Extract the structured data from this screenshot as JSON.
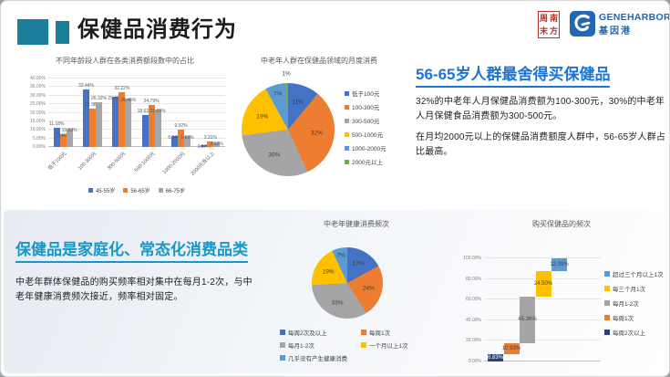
{
  "header": {
    "title": "保健品消费行为",
    "seal": {
      "chars": [
        "周",
        "南",
        "末",
        "方"
      ]
    },
    "geneharbor": {
      "en": "GENEHARBOR",
      "cn": "基因港"
    }
  },
  "colors": {
    "accent_teal": "#1B7E9B",
    "heading_blue": "#1B74D6",
    "heading_cyan": "#1598C8",
    "seal_red": "#B3342A",
    "logo_blue": "#2368B0",
    "series_blue": "#4472C4",
    "series_orange": "#ED7D31",
    "series_gray": "#A5A5A5",
    "series_yellow": "#FFC000",
    "series_steel": "#5B9BD5",
    "series_green": "#70AD47",
    "series_navy": "#264478"
  },
  "insight_right": {
    "heading": "56-65岁人群最舍得买保健品",
    "para1": "32%的中老年人月保健品消费额为100-300元，30%的中老年人月保健食品消费额为300-500元。",
    "para2": "在月均2000元以上的保健品消费额度人群中，56-65岁人群占比最高。"
  },
  "insight_left": {
    "heading": "保健品是家庭化、常态化消费品类",
    "para": "中老年群体保健品的购买频率相对集中在每月1-2次，与中老年健康消费频次接近，频率相对固定。"
  },
  "chart_data": [
    {
      "id": "age_spend_bar",
      "type": "bar",
      "title": "不同年龄段人群在各类消费额段数中的占比",
      "categories": [
        "低于100元",
        "100-300元",
        "300-500元",
        "500-1000元",
        "1000-2000元",
        "2000元及以上"
      ],
      "series": [
        {
          "name": "45-55岁",
          "color": "#4472C4",
          "values": [
            11.18,
            33.44,
            29.46,
            18.62,
            6.34,
            0.97
          ]
        },
        {
          "name": "56-65岁",
          "color": "#ED7D31",
          "values": [
            7.44,
            22.38,
            32.22,
            24.79,
            9.92,
            3.31
          ]
        },
        {
          "name": "66-75岁",
          "color": "#A5A5A5",
          "values": [
            10.53,
            26.32,
            28.46,
            21.65,
            6.63,
            2.63
          ]
        }
      ],
      "ylim": [
        0,
        40
      ],
      "ytick_step": 5,
      "grid": true,
      "legend_position": "bottom"
    },
    {
      "id": "monthly_spend_pie",
      "type": "pie",
      "title": "中老年人群在保健品领域的月度消费",
      "labels": [
        "低于100元",
        "100-300元",
        "300-500元",
        "500-1000元",
        "1000-2000元",
        "2000元以上"
      ],
      "values": [
        11,
        32,
        30,
        19,
        7,
        1
      ],
      "colors": [
        "#4472C4",
        "#ED7D31",
        "#A5A5A5",
        "#FFC000",
        "#5B9BD5",
        "#70AD47"
      ],
      "legend_position": "right"
    },
    {
      "id": "health_freq_pie",
      "type": "pie",
      "title": "中老年健康消费频次",
      "labels": [
        "每周2次及以上",
        "每周1次",
        "每月1-2次",
        "一个月以上1次",
        "几乎没有产生健康消费"
      ],
      "values": [
        17,
        24,
        33,
        19,
        7
      ],
      "colors": [
        "#4472C4",
        "#ED7D31",
        "#A5A5A5",
        "#FFC000",
        "#5B9BD5"
      ],
      "legend_position": "bottom"
    },
    {
      "id": "buy_freq_waterfall",
      "type": "bar",
      "subtype": "stacked-waterfall",
      "title": "购买保健品的频次",
      "categories": [
        "每周2次以上",
        "每周1次",
        "每月1-2次",
        "每三个月1次",
        "超过三个月以上1次"
      ],
      "values": [
        6.83,
        10.93,
        45.36,
        24.5,
        12.39
      ],
      "value_labels": [
        "6.83%",
        "10.93%",
        "45.36%",
        "24.50%",
        "12.39%"
      ],
      "colors": [
        "#264478",
        "#ED7D31",
        "#A5A5A5",
        "#FFC000",
        "#5B9BD5"
      ],
      "ylim": [
        0,
        100
      ],
      "ytick_step": 20,
      "legend_position": "right",
      "legend_reversed": true
    }
  ]
}
